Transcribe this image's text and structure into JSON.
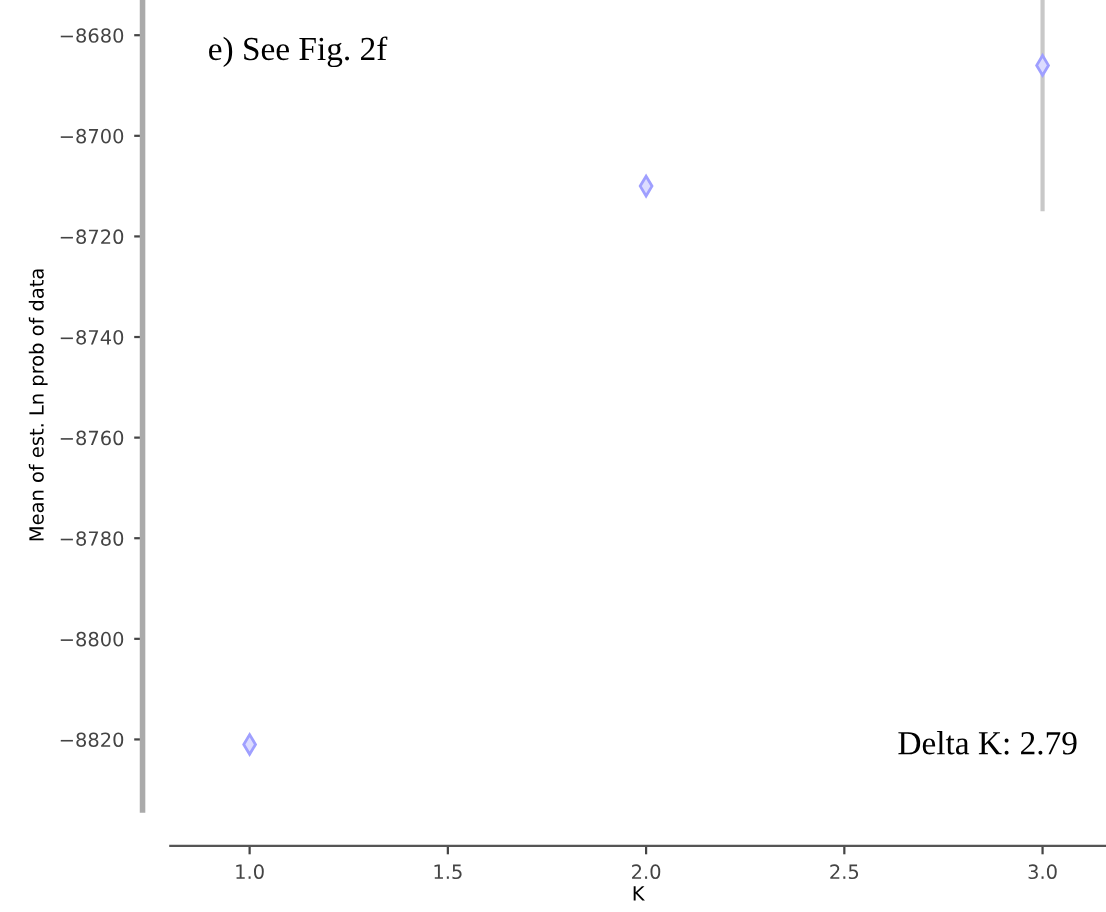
{
  "chart_data": {
    "type": "scatter",
    "xlabel": "K",
    "ylabel": "Mean of est. Ln prob of data",
    "x": [
      1,
      2,
      3
    ],
    "series": [
      {
        "color": "#9f9fff",
        "values": [
          -8821,
          -8710,
          -8686
        ],
        "errors": [
          null,
          null,
          [
            -8715,
            -8673
          ]
        ]
      }
    ],
    "xlim": [
      0.8,
      3.16
    ],
    "xticks": [
      {
        "value": 1,
        "label": "1.0"
      },
      {
        "value": 1.5,
        "label": "1.5"
      },
      {
        "value": 2,
        "label": "2.0"
      },
      {
        "value": 2.5,
        "label": "2.5"
      },
      {
        "value": 3,
        "label": "3.0"
      }
    ],
    "ylim": [
      -8834,
      -8673
    ],
    "yticks": [
      -8820,
      -8800,
      -8780,
      -8760,
      -8740,
      -8720,
      -8700,
      -8680
    ],
    "marker": "diamond",
    "grid": false,
    "legend": false,
    "annotations": [
      "e) See Fig. 2f",
      "Delta K: 2.79"
    ]
  }
}
